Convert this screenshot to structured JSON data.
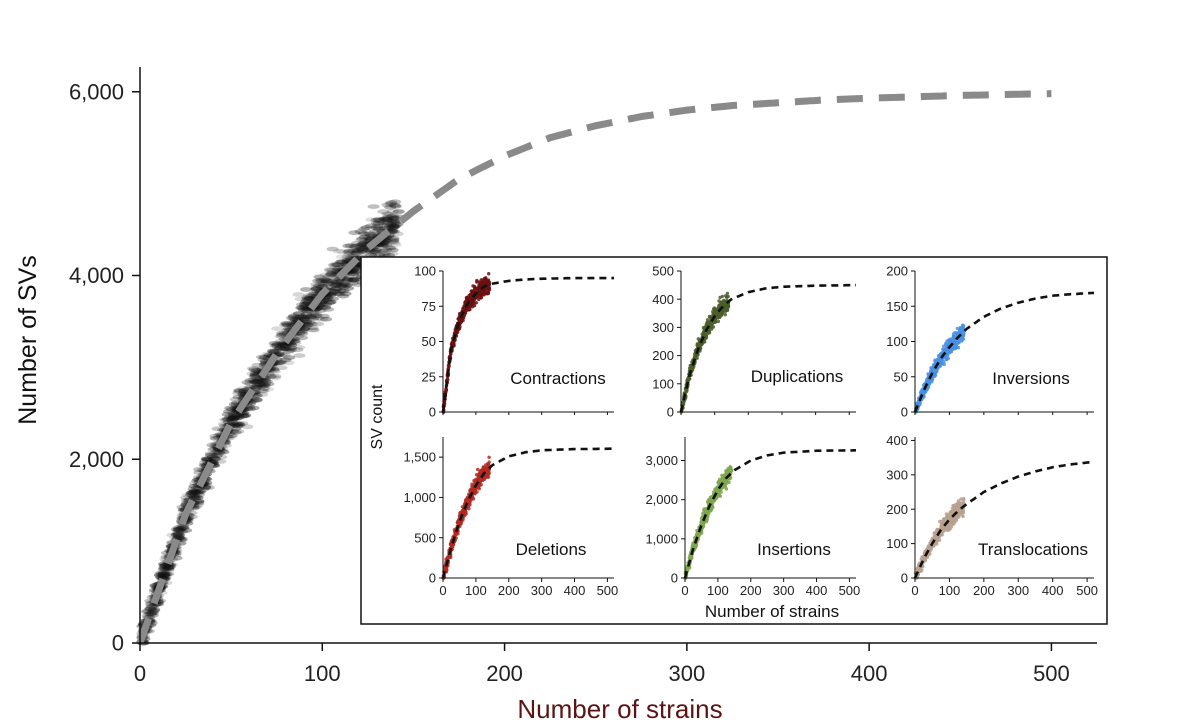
{
  "colors": {
    "main_points": "#111111",
    "main_fit": "#8a8a8a",
    "main_xlabel": "#5a1414",
    "fit_inset": "#111111",
    "contractions": "#6b1010",
    "duplications": "#4a5e2a",
    "inversions": "#4a90e2",
    "deletions": "#b22a22",
    "insertions": "#7ea64e",
    "translocations": "#b7a08e"
  },
  "chart_data": [
    {
      "id": "main",
      "type": "scatter",
      "title": "",
      "xlabel": "Number of strains",
      "ylabel": "Number of SVs",
      "xlim": [
        0,
        525
      ],
      "ylim": [
        0,
        6400
      ],
      "xticks": [
        0,
        100,
        200,
        300,
        400,
        500
      ],
      "xtick_labels": [
        "0",
        "100",
        "200",
        "300",
        "400",
        "500"
      ],
      "yticks": [
        0,
        2000,
        4000,
        6000
      ],
      "ytick_labels": [
        "0",
        "2,000",
        "4,000",
        "6,000"
      ],
      "scatter": {
        "x_range": [
          1,
          142
        ],
        "y_at_max_x": 4780,
        "y_at_min_x": 200
      },
      "fit_curve": {
        "x": [
          0,
          25,
          50,
          75,
          100,
          125,
          150,
          175,
          200,
          225,
          250,
          275,
          300,
          325,
          350,
          375,
          400,
          425,
          450,
          475,
          500
        ],
        "y": [
          0,
          1400,
          2400,
          3150,
          3800,
          4300,
          4700,
          5050,
          5300,
          5500,
          5630,
          5730,
          5800,
          5850,
          5880,
          5910,
          5930,
          5945,
          5960,
          5970,
          5980
        ]
      },
      "legend": "none",
      "grid": false
    },
    {
      "id": "contractions",
      "type": "scatter",
      "label": "Contractions",
      "xlim": [
        0,
        520
      ],
      "ylim": [
        0,
        100
      ],
      "xticks": [],
      "xtick_labels": [],
      "yticks": [
        0,
        25,
        50,
        75,
        100
      ],
      "ytick_labels": [
        "0",
        "25",
        "50",
        "75",
        "100"
      ],
      "scatter": {
        "x_range": [
          1,
          142
        ],
        "y_at_max_x": 90,
        "y_at_min_x": 8
      },
      "fit_curve": {
        "x": [
          0,
          25,
          50,
          75,
          100,
          125,
          150,
          200,
          250,
          300,
          400,
          520
        ],
        "y": [
          0,
          45,
          65,
          77,
          84,
          89,
          91,
          93,
          94,
          94.5,
          95,
          95
        ]
      }
    },
    {
      "id": "duplications",
      "type": "scatter",
      "label": "Duplications",
      "xlim": [
        0,
        520
      ],
      "ylim": [
        0,
        500
      ],
      "xticks": [],
      "xtick_labels": [],
      "yticks": [
        0,
        100,
        200,
        300,
        400,
        500
      ],
      "ytick_labels": [
        "0",
        "100",
        "200",
        "300",
        "400",
        "500"
      ],
      "scatter": {
        "x_range": [
          1,
          142
        ],
        "y_at_max_x": 390,
        "y_at_min_x": 20
      },
      "fit_curve": {
        "x": [
          0,
          25,
          50,
          75,
          100,
          125,
          150,
          200,
          250,
          300,
          400,
          520
        ],
        "y": [
          0,
          130,
          220,
          290,
          340,
          375,
          400,
          425,
          438,
          444,
          448,
          450
        ]
      }
    },
    {
      "id": "inversions",
      "type": "scatter",
      "label": "Inversions",
      "xlim": [
        0,
        520
      ],
      "ylim": [
        0,
        200
      ],
      "xticks": [],
      "xtick_labels": [],
      "yticks": [
        0,
        50,
        100,
        150,
        200
      ],
      "ytick_labels": [
        "0",
        "50",
        "100",
        "150",
        "200"
      ],
      "scatter": {
        "x_range": [
          1,
          142
        ],
        "y_at_max_x": 112,
        "y_at_min_x": 5
      },
      "fit_curve": {
        "x": [
          0,
          25,
          50,
          75,
          100,
          125,
          150,
          200,
          250,
          300,
          350,
          400,
          450,
          520
        ],
        "y": [
          0,
          30,
          55,
          76,
          92,
          106,
          118,
          135,
          147,
          155,
          161,
          165,
          167,
          169
        ]
      }
    },
    {
      "id": "deletions",
      "type": "scatter",
      "label": "Deletions",
      "xlim": [
        0,
        520
      ],
      "ylim": [
        0,
        1750
      ],
      "xticks": [
        0,
        100,
        200,
        300,
        400,
        500
      ],
      "xtick_labels": [
        "0",
        "100",
        "200",
        "300",
        "400",
        "500"
      ],
      "yticks": [
        0,
        500,
        1000,
        1500
      ],
      "ytick_labels": [
        "0",
        "500",
        "1,000",
        "1,500"
      ],
      "scatter": {
        "x_range": [
          1,
          142
        ],
        "y_at_max_x": 1330,
        "y_at_min_x": 40
      },
      "fit_curve": {
        "x": [
          0,
          25,
          50,
          75,
          100,
          125,
          150,
          200,
          250,
          300,
          400,
          520
        ],
        "y": [
          0,
          380,
          700,
          950,
          1150,
          1300,
          1400,
          1510,
          1560,
          1585,
          1600,
          1605
        ]
      }
    },
    {
      "id": "insertions",
      "type": "scatter",
      "label": "Insertions",
      "xlim": [
        0,
        520
      ],
      "ylim": [
        0,
        3600
      ],
      "xticks": [
        0,
        100,
        200,
        300,
        400,
        500
      ],
      "xtick_labels": [
        "0",
        "100",
        "200",
        "300",
        "400",
        "500"
      ],
      "yticks": [
        0,
        1000,
        2000,
        3000
      ],
      "ytick_labels": [
        "0",
        "1,000",
        "2,000",
        "3,000"
      ],
      "scatter": {
        "x_range": [
          1,
          142
        ],
        "y_at_max_x": 2650,
        "y_at_min_x": 80
      },
      "fit_curve": {
        "x": [
          0,
          25,
          50,
          75,
          100,
          125,
          150,
          200,
          250,
          300,
          400,
          520
        ],
        "y": [
          0,
          750,
          1350,
          1850,
          2250,
          2550,
          2750,
          3000,
          3130,
          3200,
          3250,
          3260
        ]
      }
    },
    {
      "id": "translocations",
      "type": "scatter",
      "label": "Translocations",
      "xlim": [
        0,
        520
      ],
      "ylim": [
        0,
        410
      ],
      "xticks": [
        0,
        100,
        200,
        300,
        400,
        500
      ],
      "xtick_labels": [
        "0",
        "100",
        "200",
        "300",
        "400",
        "500"
      ],
      "yticks": [
        0,
        100,
        200,
        300,
        400
      ],
      "ytick_labels": [
        "0",
        "100",
        "200",
        "300",
        "400"
      ],
      "scatter": {
        "x_range": [
          1,
          142
        ],
        "y_at_max_x": 195,
        "y_at_min_x": 5
      },
      "fit_curve": {
        "x": [
          0,
          25,
          50,
          75,
          100,
          125,
          150,
          200,
          250,
          300,
          350,
          400,
          450,
          520
        ],
        "y": [
          0,
          55,
          100,
          140,
          170,
          195,
          215,
          250,
          275,
          295,
          310,
          322,
          330,
          338
        ]
      }
    }
  ],
  "inset": {
    "ylabel": "SV count",
    "xlabel": "Number of strains"
  }
}
